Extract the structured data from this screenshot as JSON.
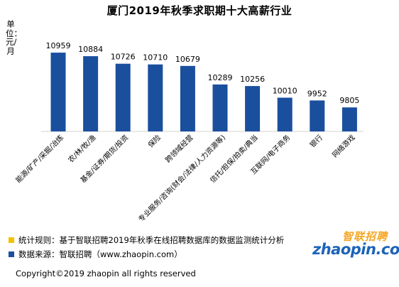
{
  "chart_data": {
    "type": "bar",
    "title": "厦门2019年秋季求职期十大高薪行业",
    "unit_label": "单位：元/月",
    "categories": [
      "能源/矿产/采掘/冶炼",
      "农/林/牧/渔",
      "基金/证券/期货/投资",
      "保险",
      "跨领域经营",
      "专业服务/咨询(财会/法律/人力资源等)",
      "信托/担保/拍卖/典当",
      "互联网/电子商务",
      "银行",
      "网络游戏"
    ],
    "values": [
      10959,
      10884,
      10726,
      10710,
      10679,
      10289,
      10256,
      10010,
      9952,
      9805
    ],
    "bar_color": "#1a4f9e",
    "ylim": [
      0,
      11500
    ],
    "grid": false,
    "legend": "none"
  },
  "notes": {
    "rule_color": "#f2c200",
    "rule": "统计规则：基于智联招聘2019年秋季在线招聘数据库的数据监测统计分析",
    "source_color": "#1a4f9e",
    "source": "数据来源：智联招聘（www.zhaopin.com）"
  },
  "copyright": "Copyright©2019 zhaopin all rights reserved",
  "logo": {
    "cn": "智联招聘",
    "en": "zhaopin.com"
  }
}
